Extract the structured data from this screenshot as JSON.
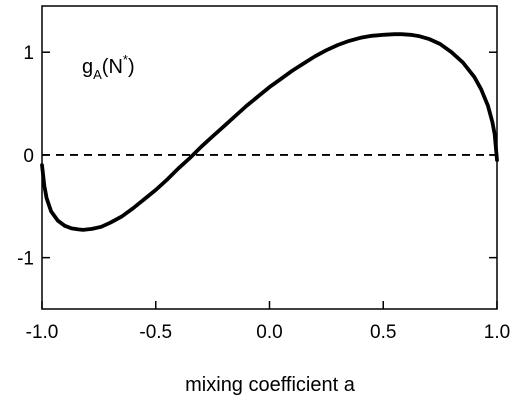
{
  "chart_data": {
    "type": "line",
    "title": "",
    "xlabel": "mixing coefficient a",
    "ylabel": "",
    "annotation": {
      "base": "g",
      "sub": "A",
      "open": "(N",
      "sup": "*",
      "close": ")"
    },
    "xlim": [
      -1.0,
      1.0
    ],
    "ylim": [
      -1.5,
      1.45
    ],
    "xticks": [
      {
        "value": -1.0,
        "label": "-1.0"
      },
      {
        "value": -0.5,
        "label": "-0.5"
      },
      {
        "value": 0.0,
        "label": "0.0"
      },
      {
        "value": 0.5,
        "label": "0.5"
      },
      {
        "value": 1.0,
        "label": "1.0"
      }
    ],
    "yticks": [
      {
        "value": 1,
        "label": "1"
      },
      {
        "value": 0,
        "label": "0"
      },
      {
        "value": -1,
        "label": "-1"
      }
    ],
    "grid": false,
    "legend": "none",
    "reference_line": {
      "y": 0,
      "style": "dashed"
    },
    "series": [
      {
        "x": [
          -1.0,
          -0.99,
          -0.98,
          -0.96,
          -0.93,
          -0.9,
          -0.87,
          -0.84,
          -0.82,
          -0.78,
          -0.74,
          -0.7,
          -0.65,
          -0.6,
          -0.55,
          -0.5,
          -0.45,
          -0.4,
          -0.35,
          -0.3,
          -0.25,
          -0.2,
          -0.15,
          -0.1,
          -0.05,
          0.0,
          0.05,
          0.1,
          0.15,
          0.2,
          0.25,
          0.3,
          0.35,
          0.4,
          0.45,
          0.5,
          0.55,
          0.58,
          0.62,
          0.66,
          0.7,
          0.75,
          0.8,
          0.85,
          0.9,
          0.93,
          0.96,
          0.98,
          0.99,
          1.0
        ],
        "y": [
          -0.1,
          -0.3,
          -0.42,
          -0.55,
          -0.64,
          -0.69,
          -0.715,
          -0.725,
          -0.73,
          -0.72,
          -0.7,
          -0.66,
          -0.6,
          -0.52,
          -0.43,
          -0.34,
          -0.24,
          -0.13,
          -0.03,
          0.08,
          0.18,
          0.28,
          0.38,
          0.48,
          0.57,
          0.66,
          0.74,
          0.82,
          0.89,
          0.96,
          1.02,
          1.07,
          1.11,
          1.14,
          1.16,
          1.17,
          1.175,
          1.175,
          1.17,
          1.155,
          1.13,
          1.08,
          1.0,
          0.9,
          0.76,
          0.64,
          0.48,
          0.32,
          0.2,
          -0.05
        ]
      }
    ]
  }
}
